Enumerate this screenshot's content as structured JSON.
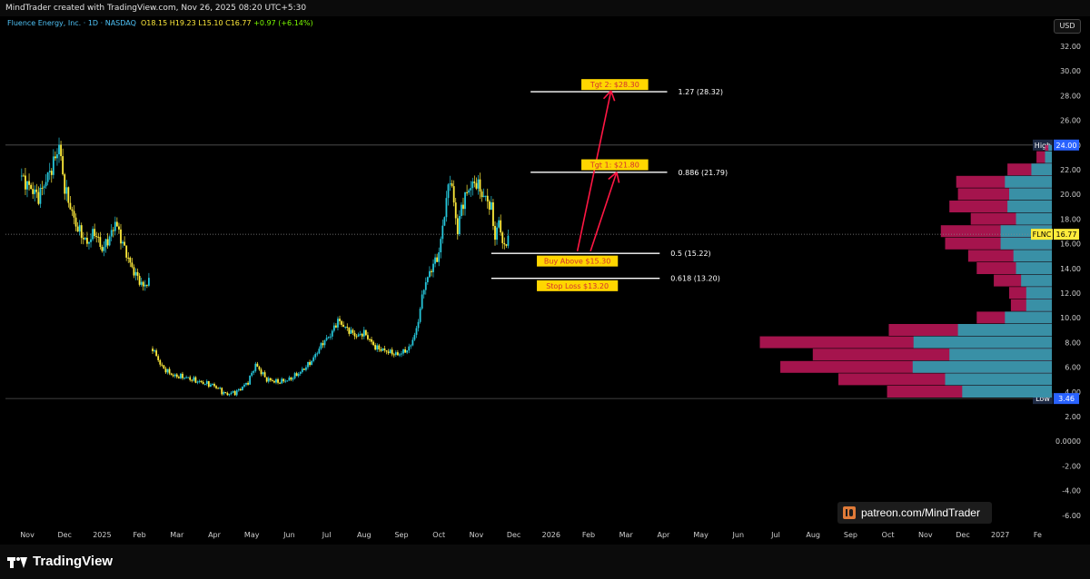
{
  "header": {
    "text": "MindTrader created with TradingView.com, Nov 26, 2025 08:20 UTC+5:30"
  },
  "info": {
    "symbol": "Fluence Energy, Inc. · 1D · NASDAQ",
    "open": "O18.15",
    "high": "H19.23",
    "low": "L15.10",
    "close": "C16.77",
    "change": "+0.97 (+6.14%)"
  },
  "currency_button": "USD",
  "watermark": "patreon.com/MindTrader",
  "brand": "TradingView",
  "colors": {
    "up": "#26c6da",
    "down": "#ffeb3b",
    "vp_up": "#26a6b6",
    "vp_down": "#c2185b",
    "label_bg": "#ffd600",
    "label_text": "#d32f2f",
    "arrow": "#ff1744"
  },
  "chart_data": {
    "type": "candlestick",
    "title": "Fluence Energy, Inc. · 1D · NASDAQ",
    "ylim": [
      -7,
      33
    ],
    "y_ticks": [
      "32.00",
      "30.00",
      "28.00",
      "26.00",
      "24.00",
      "22.00",
      "20.00",
      "18.00",
      "16.00",
      "14.00",
      "12.00",
      "10.00",
      "8.00",
      "6.00",
      "4.00",
      "2.00",
      "0.0000",
      "-2.00",
      "-4.00",
      "-6.00"
    ],
    "x_ticks": [
      "Nov",
      "Dec",
      "2025",
      "Feb",
      "Mar",
      "Apr",
      "May",
      "Jun",
      "Jul",
      "Aug",
      "Sep",
      "Oct",
      "Nov",
      "Dec",
      "2026",
      "Feb",
      "Mar",
      "Apr",
      "May",
      "Jun",
      "Jul",
      "Aug",
      "Sep",
      "Oct",
      "Nov",
      "Dec",
      "2027",
      "Fe"
    ],
    "x_tick_pos": [
      0.0,
      1.0,
      2.0,
      3.0,
      4.0,
      5.0,
      6.0,
      7.0,
      8.0,
      9.0,
      10.0,
      11.0,
      12.0,
      13.0,
      14.0,
      15.0,
      16.0,
      17.0,
      18.0,
      19.0,
      20.0,
      21.0,
      22.0,
      23.0,
      24.0,
      25.0,
      26.0,
      27.0
    ],
    "price_path": [
      [
        -0.2,
        21.5
      ],
      [
        0.3,
        19.8
      ],
      [
        0.7,
        22.5
      ],
      [
        0.85,
        24.0
      ],
      [
        1.0,
        20.5
      ],
      [
        1.3,
        17.5
      ],
      [
        1.6,
        16.0
      ],
      [
        1.8,
        17.0
      ],
      [
        2.0,
        15.5
      ],
      [
        2.25,
        16.8
      ],
      [
        2.35,
        17.8
      ],
      [
        2.55,
        16.0
      ],
      [
        2.8,
        14.0
      ],
      [
        3.1,
        12.5
      ],
      [
        3.25,
        13.0
      ],
      [
        3.35,
        7.5
      ],
      [
        3.6,
        6.0
      ],
      [
        3.9,
        5.3
      ],
      [
        4.2,
        5.2
      ],
      [
        4.6,
        4.8
      ],
      [
        5.0,
        4.5
      ],
      [
        5.3,
        3.8
      ],
      [
        5.6,
        4.0
      ],
      [
        5.9,
        4.8
      ],
      [
        6.1,
        6.2
      ],
      [
        6.4,
        5.0
      ],
      [
        6.7,
        4.8
      ],
      [
        7.0,
        5.0
      ],
      [
        7.3,
        5.6
      ],
      [
        7.6,
        6.5
      ],
      [
        7.9,
        8.0
      ],
      [
        8.1,
        8.6
      ],
      [
        8.3,
        9.8
      ],
      [
        8.5,
        9.2
      ],
      [
        8.8,
        8.5
      ],
      [
        9.0,
        8.8
      ],
      [
        9.3,
        7.6
      ],
      [
        9.6,
        7.3
      ],
      [
        9.9,
        7.0
      ],
      [
        10.2,
        7.5
      ],
      [
        10.4,
        9.0
      ],
      [
        10.6,
        12.5
      ],
      [
        10.8,
        14.0
      ],
      [
        11.0,
        15.2
      ],
      [
        11.15,
        18.5
      ],
      [
        11.3,
        21.5
      ],
      [
        11.5,
        17.0
      ],
      [
        11.6,
        19.0
      ],
      [
        11.8,
        20.5
      ],
      [
        12.0,
        21.0
      ],
      [
        12.15,
        20.0
      ],
      [
        12.3,
        19.5
      ],
      [
        12.4,
        18.8
      ],
      [
        12.5,
        16.5
      ],
      [
        12.6,
        17.8
      ],
      [
        12.75,
        15.5
      ],
      [
        12.85,
        16.77
      ]
    ],
    "candle_step": 0.05,
    "horizontal_lines": [
      {
        "label": "High",
        "value": 24.0,
        "tag": "24.00"
      },
      {
        "label": "Low",
        "value": 3.46,
        "tag": "3.46"
      }
    ],
    "current_price": {
      "symbol": "FLNC",
      "value": 16.77,
      "tag": "16.77"
    },
    "fib_levels": [
      {
        "value": 28.32,
        "text": "1.27 (28.32)",
        "x0": 13.45,
        "x1": 17.1
      },
      {
        "value": 21.79,
        "text": "0.886 (21.79)",
        "x0": 13.45,
        "x1": 17.1
      },
      {
        "value": 15.22,
        "text": "0.5 (15.22)",
        "x0": 12.4,
        "x1": 16.9
      },
      {
        "value": 13.2,
        "text": "0.618 (13.20)",
        "x0": 12.4,
        "x1": 16.9
      }
    ],
    "annotations": [
      {
        "text": "Tgt 2: $28.30",
        "x": 15.7,
        "y": 28.9
      },
      {
        "text": "Tgt 1: $21.80",
        "x": 15.7,
        "y": 22.4
      },
      {
        "text": "Buy Above $15.30",
        "x": 14.7,
        "y": 14.6
      },
      {
        "text": "Stop Loss $13.20",
        "x": 14.7,
        "y": 12.6
      }
    ],
    "arrows": [
      {
        "from": [
          14.7,
          15.4
        ],
        "to": [
          15.6,
          28.4
        ]
      },
      {
        "from": [
          15.05,
          15.4
        ],
        "to": [
          15.75,
          21.8
        ]
      }
    ],
    "volume_profile": {
      "rows": [
        {
          "low": 3.5,
          "high": 4.5,
          "total": 193,
          "up": 105
        },
        {
          "low": 4.5,
          "high": 5.5,
          "total": 250,
          "up": 125
        },
        {
          "low": 5.5,
          "high": 6.5,
          "total": 318,
          "up": 163
        },
        {
          "low": 6.5,
          "high": 7.5,
          "total": 280,
          "up": 120
        },
        {
          "low": 7.5,
          "high": 8.5,
          "total": 342,
          "up": 162
        },
        {
          "low": 8.5,
          "high": 9.5,
          "total": 191,
          "up": 110
        },
        {
          "low": 9.5,
          "high": 10.5,
          "total": 88,
          "up": 55
        },
        {
          "low": 10.5,
          "high": 11.5,
          "total": 48,
          "up": 30
        },
        {
          "low": 11.5,
          "high": 12.5,
          "total": 50,
          "up": 30
        },
        {
          "low": 12.5,
          "high": 13.5,
          "total": 68,
          "up": 36
        },
        {
          "low": 13.5,
          "high": 14.5,
          "total": 88,
          "up": 42
        },
        {
          "low": 14.5,
          "high": 15.5,
          "total": 98,
          "up": 45
        },
        {
          "low": 15.5,
          "high": 16.5,
          "total": 125,
          "up": 60
        },
        {
          "low": 16.5,
          "high": 17.5,
          "total": 130,
          "up": 60
        },
        {
          "low": 17.5,
          "high": 18.5,
          "total": 95,
          "up": 42
        },
        {
          "low": 18.5,
          "high": 19.5,
          "total": 120,
          "up": 52
        },
        {
          "low": 19.5,
          "high": 20.5,
          "total": 110,
          "up": 50
        },
        {
          "low": 20.5,
          "high": 21.5,
          "total": 112,
          "up": 55
        },
        {
          "low": 21.5,
          "high": 22.5,
          "total": 52,
          "up": 24
        },
        {
          "low": 22.5,
          "high": 23.5,
          "total": 18,
          "up": 8
        },
        {
          "low": 23.5,
          "high": 24.0,
          "total": 8,
          "up": 4
        }
      ]
    }
  }
}
